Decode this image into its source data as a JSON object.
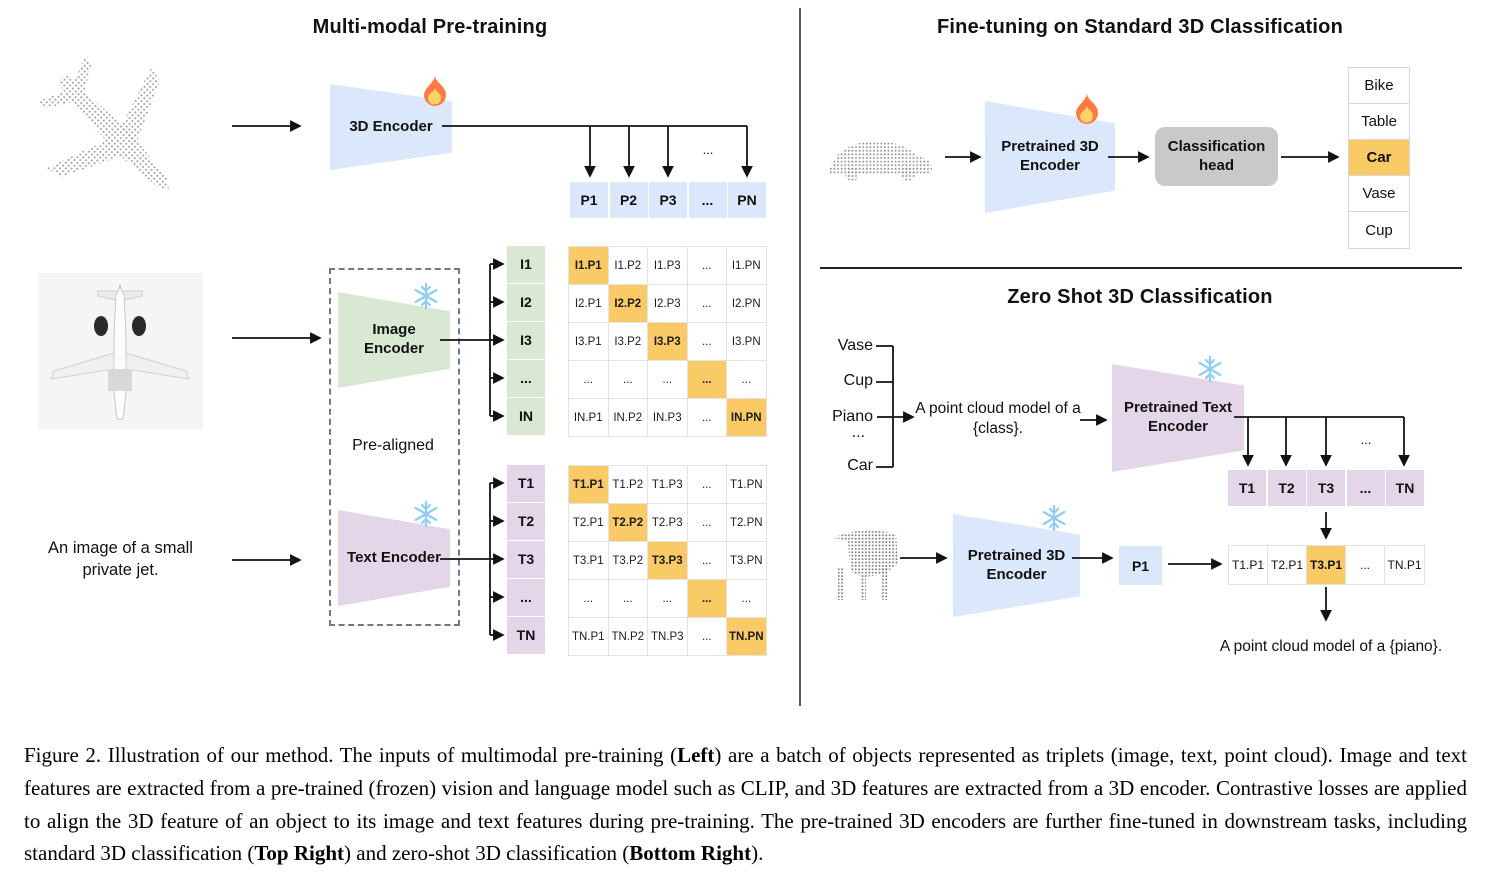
{
  "left_panel": {
    "title": "Multi-modal Pre-training",
    "encoder_3d": {
      "label": "3D Encoder",
      "icon": "fire-icon"
    },
    "p_row": [
      "P1",
      "P2",
      "P3",
      "...",
      "PN"
    ],
    "p_ellipsis": "...",
    "image_encoder": {
      "label": "Image Encoder",
      "icon": "snowflake-icon"
    },
    "text_encoder": {
      "label": "Text Encoder",
      "icon": "snowflake-icon"
    },
    "pre_aligned_label": "Pre-aligned",
    "i_labels": [
      "I1",
      "I2",
      "I3",
      "...",
      "IN"
    ],
    "i_matrix": [
      [
        "I1.P1",
        "I1.P2",
        "I1.P3",
        "...",
        "I1.PN"
      ],
      [
        "I2.P1",
        "I2.P2",
        "I2.P3",
        "...",
        "I2.PN"
      ],
      [
        "I3.P1",
        "I3.P2",
        "I3.P3",
        "...",
        "I3.PN"
      ],
      [
        "...",
        "...",
        "...",
        "...",
        "..."
      ],
      [
        "IN.P1",
        "IN.P2",
        "IN.P3",
        "...",
        "IN.PN"
      ]
    ],
    "t_labels": [
      "T1",
      "T2",
      "T3",
      "...",
      "TN"
    ],
    "t_matrix": [
      [
        "T1.P1",
        "T1.P2",
        "T1.P3",
        "...",
        "T1.PN"
      ],
      [
        "T2.P1",
        "T2.P2",
        "T2.P3",
        "...",
        "T2.PN"
      ],
      [
        "T3.P1",
        "T3.P2",
        "T3.P3",
        "...",
        "T3.PN"
      ],
      [
        "...",
        "...",
        "...",
        "...",
        "..."
      ],
      [
        "TN.P1",
        "TN.P2",
        "TN.P3",
        "...",
        "TN.PN"
      ]
    ],
    "text_input": "An image of a small private jet.",
    "point_cloud": "airplane-point-cloud",
    "image_input": "airplane-image"
  },
  "top_right_panel": {
    "title": "Fine-tuning on Standard 3D Classification",
    "encoder": {
      "label": "Pretrained 3D Encoder",
      "icon": "fire-icon"
    },
    "head": {
      "label": "Classification head"
    },
    "classes": [
      "Bike",
      "Table",
      "Car",
      "Vase",
      "Cup"
    ],
    "predicted_class": "Car",
    "point_cloud": "car-point-cloud"
  },
  "bottom_right_panel": {
    "title": "Zero Shot 3D Classification",
    "candidates": [
      "Vase",
      "Cup",
      "Piano",
      "...",
      "Car"
    ],
    "prompt": "A point cloud model of a {class}.",
    "text_encoder": {
      "label": "Pretrained Text Encoder",
      "icon": "snowflake-icon"
    },
    "t_row": [
      "T1",
      "T2",
      "T3",
      "...",
      "TN"
    ],
    "t_ellipsis": "...",
    "encoder_3d": {
      "label": "Pretrained 3D Encoder",
      "icon": "snowflake-icon"
    },
    "p1_label": "P1",
    "sim_row": [
      "T1.P1",
      "T2.P1",
      "T3.P1",
      "...",
      "TN.P1"
    ],
    "predicted_sim": "T3.P1",
    "result": "A point cloud model of a {piano}.",
    "point_cloud": "piano-point-cloud"
  },
  "caption": {
    "segments": [
      "Figure 2. Illustration of our method. The inputs of multimodal pre-training (",
      "Left",
      ") are a batch of objects represented as triplets (image, text, point cloud). Image and text features are extracted from a pre-trained (frozen) vision and language model such as CLIP, and 3D features are extracted from a 3D encoder. Contrastive losses are applied to align the 3D feature of an object to its image and text features during pre-training. The pre-trained 3D encoders are further fine-tuned in downstream tasks, including standard 3D classification (",
      "Top Right",
      ") and zero-shot 3D classification (",
      "Bottom Right",
      ")."
    ]
  },
  "colors": {
    "encoder_blue": "#dbe8fb",
    "encoder_green": "#d8e8d3",
    "encoder_purple": "#e3d6e9",
    "highlight_orange": "#f9ca66",
    "head_gray": "#c9c9c9"
  }
}
